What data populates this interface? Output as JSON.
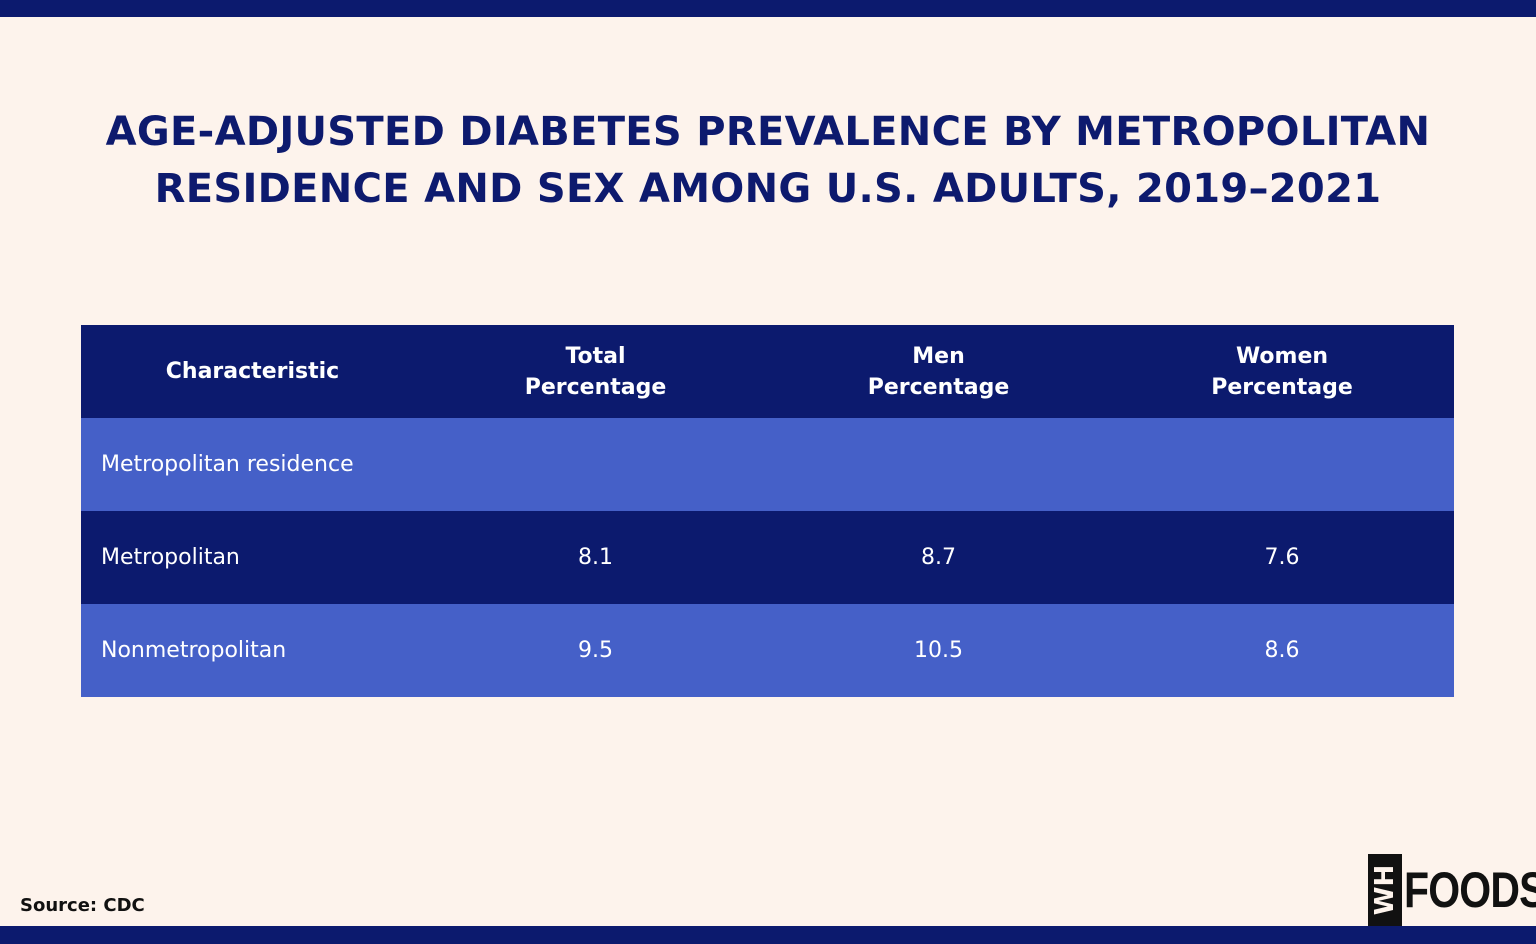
{
  "title": "AGE-ADJUSTED DIABETES PREVALENCE BY METROPOLITAN RESIDENCE AND SEX AMONG U.S. ADULTS, 2019–2021",
  "table": {
    "header": [
      "Characteristic",
      "Total Percentage",
      "Men Percentage",
      "Women Percentage"
    ],
    "section": "Metropolitan residence",
    "rows": [
      [
        "Metropolitan",
        8.1,
        8.7,
        7.6
      ],
      [
        "Nonmetropolitan",
        9.5,
        10.5,
        8.6
      ]
    ]
  },
  "source": "Source: CDC",
  "logo": {
    "mark": "WH",
    "name": "FOODS"
  }
}
